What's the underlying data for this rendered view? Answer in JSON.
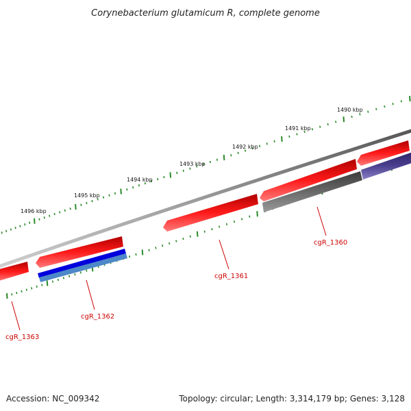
{
  "title": "Corynebacterium glutamicum R, complete genome",
  "accession": "Accession: NC_009342",
  "summary": "Topology: circular; Length: 3,314,179 bp; Genes: 3,128",
  "colors": {
    "backbone": "#8a8a8a",
    "gene_forward": "#ee0000",
    "gene_forward_shade": "#ff7070",
    "tick": "#2a8a2a",
    "label_line": "#cc0000",
    "cds_blue": "#0000dd",
    "cds_light_blue": "#4d88c8",
    "cds_grey": "#555555",
    "cds_purple": "#4b3f8f"
  },
  "scale": {
    "unit": "kbp",
    "labels": [
      "1490 kbp",
      "1491 kbp",
      "1492 kbp",
      "1493 kbp",
      "1494 kbp",
      "1495 kbp",
      "1496 kbp"
    ]
  },
  "genes": [
    {
      "name": "cgR_1360"
    },
    {
      "name": "cgR_1361"
    },
    {
      "name": "cgR_1362"
    },
    {
      "name": "cgR_1363"
    }
  ]
}
